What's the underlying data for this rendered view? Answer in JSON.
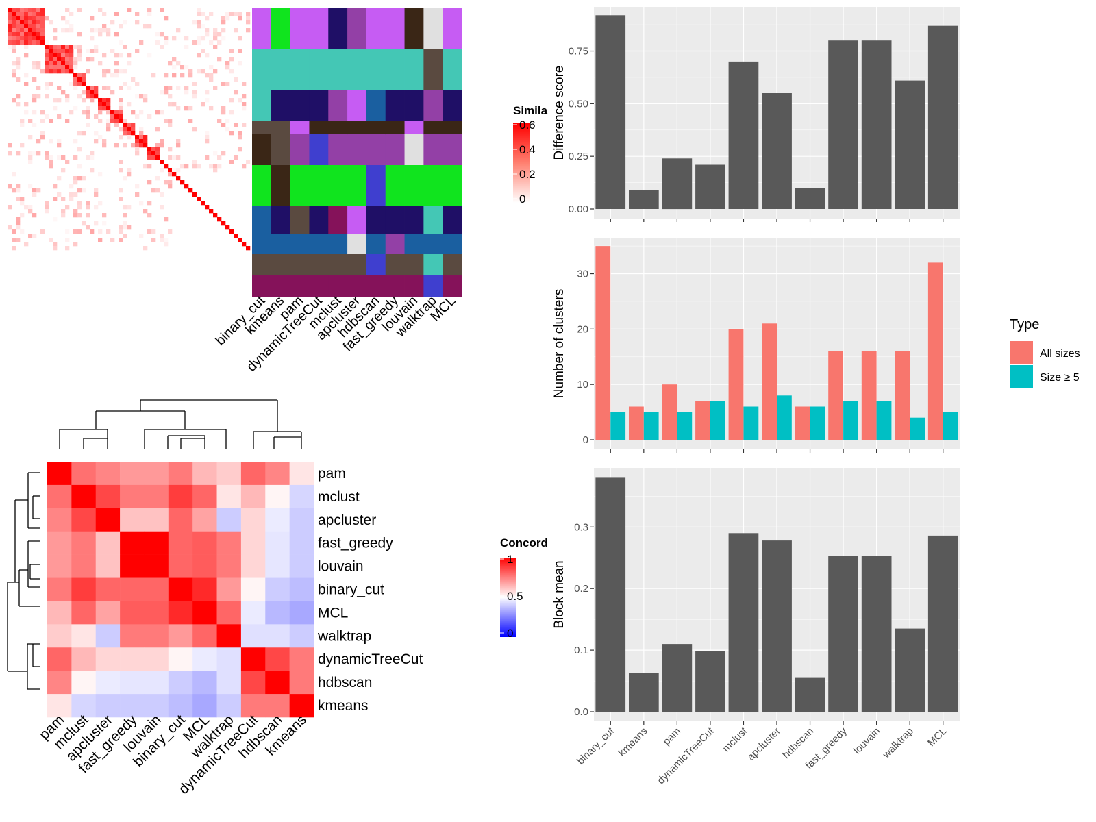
{
  "methods": [
    "binary_cut",
    "kmeans",
    "pam",
    "dynamicTreeCut",
    "mclust",
    "apcluster",
    "hdbscan",
    "fast_greedy",
    "louvain",
    "walktrap",
    "MCL"
  ],
  "colors": {
    "bar_gray": "#595959",
    "panel_bg": "#ebebeb",
    "all_sizes": "#F8766D",
    "size_ge5": "#00BFC4",
    "heat_high": "#ff0000",
    "heat_mid": "#ffffff",
    "heat_low": "#0000ff"
  },
  "similarity_legend": {
    "title": "Simila",
    "ticks": [
      "0.6",
      "0.4",
      "0.2",
      "0"
    ]
  },
  "concordance_legend": {
    "title": "Concord",
    "ticks": [
      "1",
      "0.5",
      "0"
    ]
  },
  "assignment_columns": [
    "binary_cut",
    "kmeans",
    "pam",
    "dynamicTreeCut",
    "mclust",
    "apcluster",
    "hdbscan",
    "fast_greedy",
    "louvain",
    "walktrap",
    "MCL"
  ],
  "concordance_order": [
    "pam",
    "mclust",
    "apcluster",
    "fast_greedy",
    "louvain",
    "binary_cut",
    "MCL",
    "walktrap",
    "dynamicTreeCut",
    "hdbscan",
    "kmeans"
  ],
  "concordance_matrix": [
    [
      1.0,
      0.78,
      0.74,
      0.7,
      0.7,
      0.76,
      0.64,
      0.6,
      0.8,
      0.74,
      0.55
    ],
    [
      0.78,
      1.0,
      0.86,
      0.76,
      0.76,
      0.88,
      0.8,
      0.55,
      0.64,
      0.52,
      0.42
    ],
    [
      0.74,
      0.86,
      1.0,
      0.62,
      0.62,
      0.8,
      0.68,
      0.4,
      0.58,
      0.46,
      0.4
    ],
    [
      0.7,
      0.76,
      0.62,
      1.0,
      1.0,
      0.8,
      0.82,
      0.76,
      0.58,
      0.45,
      0.4
    ],
    [
      0.7,
      0.76,
      0.62,
      1.0,
      1.0,
      0.8,
      0.82,
      0.76,
      0.58,
      0.45,
      0.4
    ],
    [
      0.76,
      0.88,
      0.8,
      0.8,
      0.8,
      1.0,
      0.92,
      0.7,
      0.52,
      0.4,
      0.37
    ],
    [
      0.64,
      0.8,
      0.68,
      0.82,
      0.82,
      0.92,
      1.0,
      0.8,
      0.46,
      0.36,
      0.33
    ],
    [
      0.6,
      0.55,
      0.4,
      0.76,
      0.76,
      0.7,
      0.8,
      1.0,
      0.44,
      0.44,
      0.4
    ],
    [
      0.8,
      0.64,
      0.58,
      0.58,
      0.58,
      0.52,
      0.46,
      0.44,
      1.0,
      0.86,
      0.76
    ],
    [
      0.74,
      0.52,
      0.46,
      0.45,
      0.45,
      0.4,
      0.36,
      0.44,
      0.86,
      1.0,
      0.76
    ],
    [
      0.55,
      0.42,
      0.4,
      0.4,
      0.4,
      0.37,
      0.33,
      0.4,
      0.76,
      0.76,
      1.0
    ]
  ],
  "chart_data": [
    {
      "type": "bar",
      "categories": [
        "binary_cut",
        "kmeans",
        "pam",
        "dynamicTreeCut",
        "mclust",
        "apcluster",
        "hdbscan",
        "fast_greedy",
        "louvain",
        "walktrap",
        "MCL"
      ],
      "values": [
        0.92,
        0.09,
        0.24,
        0.21,
        0.7,
        0.55,
        0.1,
        0.8,
        0.8,
        0.61,
        0.87
      ],
      "ylabel": "Difference score",
      "yticks": [
        "0.00",
        "0.25",
        "0.50",
        "0.75"
      ],
      "ylim": [
        0,
        0.96
      ]
    },
    {
      "type": "bar",
      "categories": [
        "binary_cut",
        "kmeans",
        "pam",
        "dynamicTreeCut",
        "mclust",
        "apcluster",
        "hdbscan",
        "fast_greedy",
        "louvain",
        "walktrap",
        "MCL"
      ],
      "series": [
        {
          "name": "All sizes",
          "values": [
            35,
            6,
            10,
            7,
            20,
            21,
            6,
            16,
            16,
            16,
            32
          ]
        },
        {
          "name": "Size ≥ 5",
          "values": [
            5,
            5,
            5,
            7,
            6,
            8,
            6,
            7,
            7,
            4,
            5
          ]
        }
      ],
      "ylabel": "Number of clusters",
      "yticks": [
        "0",
        "10",
        "20",
        "30"
      ],
      "ylim": [
        0,
        36.5
      ],
      "legend": {
        "title": "Type",
        "position": "right"
      }
    },
    {
      "type": "bar",
      "categories": [
        "binary_cut",
        "kmeans",
        "pam",
        "dynamicTreeCut",
        "mclust",
        "apcluster",
        "hdbscan",
        "fast_greedy",
        "louvain",
        "walktrap",
        "MCL"
      ],
      "values": [
        0.38,
        0.063,
        0.11,
        0.098,
        0.29,
        0.278,
        0.055,
        0.253,
        0.253,
        0.135,
        0.286
      ],
      "ylabel": "Block mean",
      "yticks": [
        "0.0",
        "0.1",
        "0.2",
        "0.3"
      ],
      "ylim": [
        0,
        0.396
      ]
    }
  ]
}
